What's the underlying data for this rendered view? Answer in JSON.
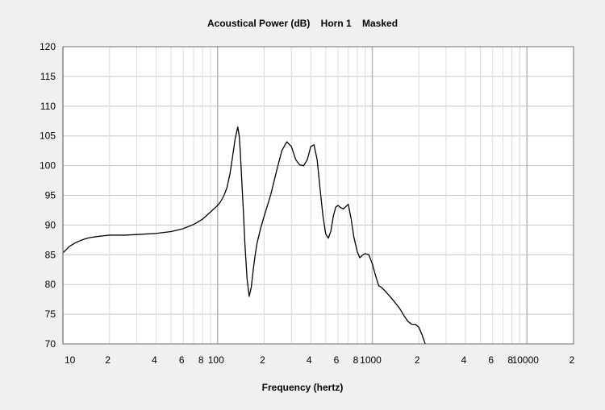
{
  "chart_data": {
    "type": "line",
    "title": "Acoustical Power (dB)    Horn 1    Masked",
    "xlabel": "Frequency (hertz)",
    "ylabel": "",
    "x_scale": "log",
    "xlim": [
      10,
      20000
    ],
    "ylim": [
      70,
      120
    ],
    "grid": true,
    "y_ticks": [
      70,
      75,
      80,
      85,
      90,
      95,
      100,
      105,
      110,
      115,
      120
    ],
    "x_ticks": [
      {
        "value": 10,
        "label": "10"
      },
      {
        "value": 20,
        "label": "2"
      },
      {
        "value": 40,
        "label": "4"
      },
      {
        "value": 60,
        "label": "6"
      },
      {
        "value": 80,
        "label": "8"
      },
      {
        "value": 100,
        "label": "100"
      },
      {
        "value": 200,
        "label": "2"
      },
      {
        "value": 400,
        "label": "4"
      },
      {
        "value": 600,
        "label": "6"
      },
      {
        "value": 800,
        "label": "8"
      },
      {
        "value": 1000,
        "label": "1000"
      },
      {
        "value": 2000,
        "label": "2"
      },
      {
        "value": 4000,
        "label": "4"
      },
      {
        "value": 6000,
        "label": "6"
      },
      {
        "value": 8000,
        "label": "8"
      },
      {
        "value": 10000,
        "label": "10000"
      },
      {
        "value": 20000,
        "label": "2"
      }
    ],
    "series": [
      {
        "color": "#000000",
        "x": [
          10,
          11,
          12,
          13,
          14,
          15,
          17,
          20,
          25,
          30,
          40,
          50,
          60,
          70,
          80,
          90,
          100,
          105,
          110,
          115,
          120,
          125,
          130,
          135,
          138,
          140,
          143,
          147,
          150,
          155,
          160,
          165,
          170,
          175,
          180,
          190,
          200,
          220,
          240,
          260,
          280,
          300,
          320,
          340,
          360,
          380,
          400,
          420,
          440,
          460,
          480,
          500,
          520,
          540,
          560,
          580,
          600,
          620,
          650,
          680,
          700,
          730,
          760,
          800,
          830,
          870,
          900,
          950,
          1000,
          1050,
          1100,
          1150,
          1200,
          1300,
          1400,
          1500,
          1600,
          1700,
          1800,
          1900,
          2000,
          2100,
          2200
        ],
        "y": [
          85.3,
          86.4,
          87.0,
          87.4,
          87.7,
          87.9,
          88.1,
          88.3,
          88.3,
          88.4,
          88.6,
          88.9,
          89.4,
          90.1,
          91.0,
          92.2,
          93.3,
          94.0,
          95.0,
          96.3,
          98.5,
          101.5,
          104.6,
          106.5,
          105.0,
          102.5,
          98.0,
          92.0,
          87.0,
          81.0,
          78.0,
          79.5,
          82.5,
          85.0,
          87.0,
          89.5,
          91.5,
          95.0,
          99.0,
          102.5,
          104.0,
          103.2,
          101.0,
          100.1,
          100.0,
          101.0,
          103.2,
          103.5,
          101.0,
          96.0,
          91.5,
          88.5,
          87.8,
          89.0,
          91.5,
          93.0,
          93.3,
          93.0,
          92.7,
          93.2,
          93.5,
          91.0,
          88.0,
          85.5,
          84.5,
          85.0,
          85.2,
          85.0,
          83.5,
          81.5,
          79.8,
          79.5,
          79.0,
          78.0,
          77.0,
          76.0,
          74.8,
          73.8,
          73.3,
          73.3,
          72.8,
          71.5,
          70.0
        ]
      }
    ]
  }
}
